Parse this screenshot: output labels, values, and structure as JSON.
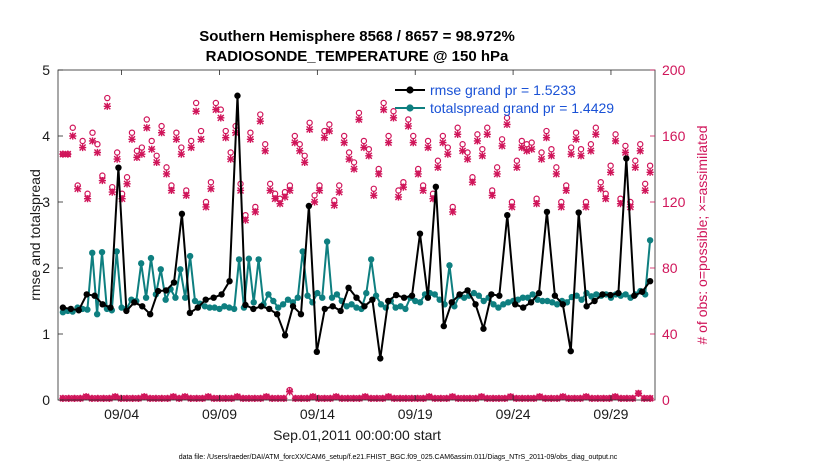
{
  "chart_data": {
    "type": "line",
    "title_line1": "Southern Hemisphere 8568 / 8657 = 98.972%",
    "title_line2": "RADIOSONDE_TEMPERATURE @ 150 hPa",
    "ylabel_left": "rmse and totalspread",
    "ylabel_right": "# of obs: o=possible; ×=assimilated",
    "xlabel": "Sep.01,2011 00:00:00 start",
    "footnote": "data file: /Users/raeder/DAI/ATM_forcXX/CAM6_setup/f.e21.FHIST_BGC.f09_025.CAM6assim.011/Diags_NTrS_2011-09/obs_diag_output.nc",
    "xlim": [
      0,
      30.5
    ],
    "ylim_left": [
      0,
      5
    ],
    "ylim_right": [
      0,
      200
    ],
    "xticks": [
      {
        "x": 3.25,
        "label": "09/04"
      },
      {
        "x": 8.25,
        "label": "09/09"
      },
      {
        "x": 13.25,
        "label": "09/14"
      },
      {
        "x": 18.25,
        "label": "09/19"
      },
      {
        "x": 23.25,
        "label": "09/24"
      },
      {
        "x": 28.25,
        "label": "09/29"
      }
    ],
    "yticks_left": [
      "0",
      "1",
      "2",
      "3",
      "4",
      "5"
    ],
    "yticks_right": [
      "0",
      "40",
      "80",
      "120",
      "160",
      "200"
    ],
    "colors": {
      "rmse": "#000000",
      "spread": "#0e7f80",
      "obs": "#d0155a",
      "legend_text": "#1a52d6"
    },
    "series": [
      {
        "name": "rmse grand pr = 1.5233",
        "key": "rmse",
        "values": [
          1.4,
          1.38,
          1.36,
          1.6,
          1.58,
          1.45,
          1.4,
          3.52,
          1.35,
          1.48,
          1.42,
          1.3,
          1.65,
          1.66,
          1.78,
          2.82,
          1.32,
          1.4,
          1.52,
          1.55,
          1.6,
          1.8,
          4.61,
          1.44,
          1.38,
          1.42,
          1.38,
          1.3,
          0.98,
          1.42,
          1.3,
          2.94,
          0.73,
          1.38,
          1.42,
          1.35,
          1.7,
          1.55,
          1.42,
          1.52,
          0.63,
          1.5,
          1.59,
          1.55,
          1.58,
          2.52,
          1.55,
          3.23,
          1.12,
          1.48,
          1.6,
          1.66,
          1.45,
          1.08,
          1.6,
          1.58,
          2.8,
          1.45,
          1.4,
          1.48,
          1.62,
          2.85,
          1.58,
          1.45,
          0.74,
          2.84,
          1.42,
          1.5,
          1.6,
          1.59,
          1.62,
          3.66,
          1.58,
          1.64,
          1.8
        ]
      },
      {
        "name": "totalspread grand pr = 1.4429",
        "key": "spread",
        "values": [
          1.33,
          1.35,
          1.34,
          1.4,
          1.38,
          1.37,
          2.23,
          1.3,
          2.24,
          1.38,
          1.36,
          2.25,
          1.4,
          1.38,
          1.52,
          1.5,
          2.07,
          1.55,
          2.15,
          1.6,
          1.98,
          1.52,
          1.68,
          1.55,
          1.98,
          1.55,
          2.18,
          1.5,
          1.46,
          1.42,
          1.4,
          1.4,
          1.38,
          1.42,
          1.4,
          1.38,
          2.13,
          1.4,
          2.14,
          1.48,
          2.13,
          1.45,
          1.6,
          1.5,
          1.4,
          1.45,
          1.52,
          1.48,
          1.55,
          2.25,
          1.58,
          1.48,
          1.62,
          1.55,
          2.4,
          1.55,
          1.6,
          1.5,
          1.42,
          1.45,
          1.4,
          1.38,
          1.62,
          2.13,
          1.58,
          1.45,
          1.4,
          1.5,
          1.4,
          1.42,
          1.38,
          1.55,
          1.5,
          1.48,
          1.6,
          1.62,
          1.6,
          1.52,
          1.45,
          2.04,
          1.42,
          1.58,
          1.55,
          1.58,
          1.62,
          1.58,
          1.5,
          1.55,
          1.45,
          1.4,
          1.45,
          1.48,
          1.5,
          1.52,
          1.55,
          1.55,
          1.6,
          1.52,
          1.5,
          1.5,
          1.48,
          1.45,
          1.5,
          1.48,
          1.56,
          1.58,
          1.52,
          1.62,
          1.57,
          1.6,
          1.58,
          1.6,
          1.55,
          1.6,
          1.58,
          1.6,
          1.55,
          1.6,
          1.65,
          1.6,
          2.42
        ]
      }
    ],
    "obs_possible": [
      149,
      149,
      165,
      130,
      157,
      125,
      162,
      155,
      136,
      183,
      129,
      150,
      125,
      135,
      162,
      151,
      153,
      170,
      157,
      148,
      166,
      141,
      130,
      162,
      153,
      127,
      157,
      180,
      163,
      120,
      132,
      180,
      176,
      163,
      150,
      166,
      131,
      112,
      162,
      117,
      173,
      155,
      131,
      125,
      122,
      126,
      130,
      160,
      155,
      148,
      168,
      124,
      130,
      163,
      167,
      121,
      130,
      160,
      150,
      144,
      174,
      157,
      152,
      128,
      140,
      180,
      160,
      175,
      127,
      132,
      170,
      160,
      140,
      130,
      157,
      125,
      145,
      160,
      153,
      117,
      165,
      155,
      150,
      135,
      161,
      152,
      165,
      127,
      141,
      158,
      171,
      120,
      145,
      157,
      155,
      156,
      122,
      150,
      163,
      152,
      141,
      120,
      130,
      153,
      162,
      152,
      120,
      155,
      165,
      132,
      125,
      142,
      161,
      122,
      154,
      120,
      145,
      155,
      131,
      142
    ],
    "obs_assimilated": [
      149,
      149,
      160,
      128,
      153,
      122,
      157,
      150,
      133,
      178,
      126,
      146,
      122,
      131,
      158,
      147,
      149,
      165,
      152,
      144,
      162,
      137,
      127,
      158,
      149,
      124,
      153,
      175,
      158,
      117,
      128,
      176,
      171,
      159,
      146,
      162,
      127,
      109,
      158,
      114,
      169,
      151,
      127,
      122,
      119,
      123,
      127,
      156,
      151,
      144,
      164,
      120,
      127,
      159,
      163,
      118,
      126,
      156,
      146,
      140,
      170,
      153,
      148,
      124,
      137,
      176,
      156,
      171,
      123,
      129,
      166,
      156,
      137,
      127,
      153,
      122,
      141,
      156,
      149,
      114,
      161,
      151,
      146,
      132,
      157,
      148,
      161,
      124,
      137,
      154,
      167,
      117,
      141,
      153,
      151,
      152,
      119,
      146,
      159,
      148,
      137,
      117,
      127,
      149,
      158,
      148,
      117,
      151,
      161,
      128,
      122,
      138,
      157,
      119,
      150,
      117,
      141,
      151,
      127,
      138
    ],
    "obs_low_possible": [
      1,
      1,
      1,
      1,
      2,
      1,
      1,
      1,
      1,
      2,
      1,
      1,
      1,
      1,
      2,
      1,
      1,
      1,
      1,
      2,
      1,
      2,
      1,
      1,
      1,
      2,
      1,
      1,
      1,
      1,
      2,
      1,
      1,
      1,
      1,
      2,
      1,
      1,
      1,
      6,
      1,
      1,
      1,
      2,
      1,
      1,
      1,
      2,
      1,
      1,
      1,
      1,
      2,
      1,
      1,
      1,
      2,
      1,
      1,
      1,
      1,
      1,
      1,
      2,
      1,
      1,
      1,
      2,
      1,
      1,
      1,
      1,
      2,
      1,
      1,
      1,
      1,
      2,
      1,
      1,
      1,
      1,
      2,
      1,
      1,
      1,
      2,
      1,
      1,
      1,
      2,
      1,
      1,
      1,
      1,
      2,
      1,
      1,
      1,
      4,
      1,
      1
    ],
    "obs_low_assimilated": [
      1,
      1,
      1,
      1,
      2,
      1,
      1,
      1,
      1,
      2,
      1,
      1,
      1,
      1,
      2,
      1,
      1,
      1,
      1,
      2,
      1,
      2,
      1,
      1,
      1,
      2,
      1,
      1,
      1,
      1,
      2,
      1,
      1,
      1,
      1,
      2,
      1,
      1,
      1,
      5,
      1,
      1,
      1,
      2,
      1,
      1,
      1,
      2,
      1,
      1,
      1,
      1,
      2,
      1,
      1,
      1,
      2,
      1,
      1,
      1,
      1,
      1,
      1,
      2,
      1,
      1,
      1,
      2,
      1,
      1,
      1,
      1,
      2,
      1,
      1,
      1,
      1,
      2,
      1,
      1,
      1,
      1,
      2,
      1,
      1,
      1,
      2,
      1,
      1,
      1,
      2,
      1,
      1,
      1,
      1,
      2,
      1,
      1,
      1,
      4,
      1,
      1
    ]
  }
}
